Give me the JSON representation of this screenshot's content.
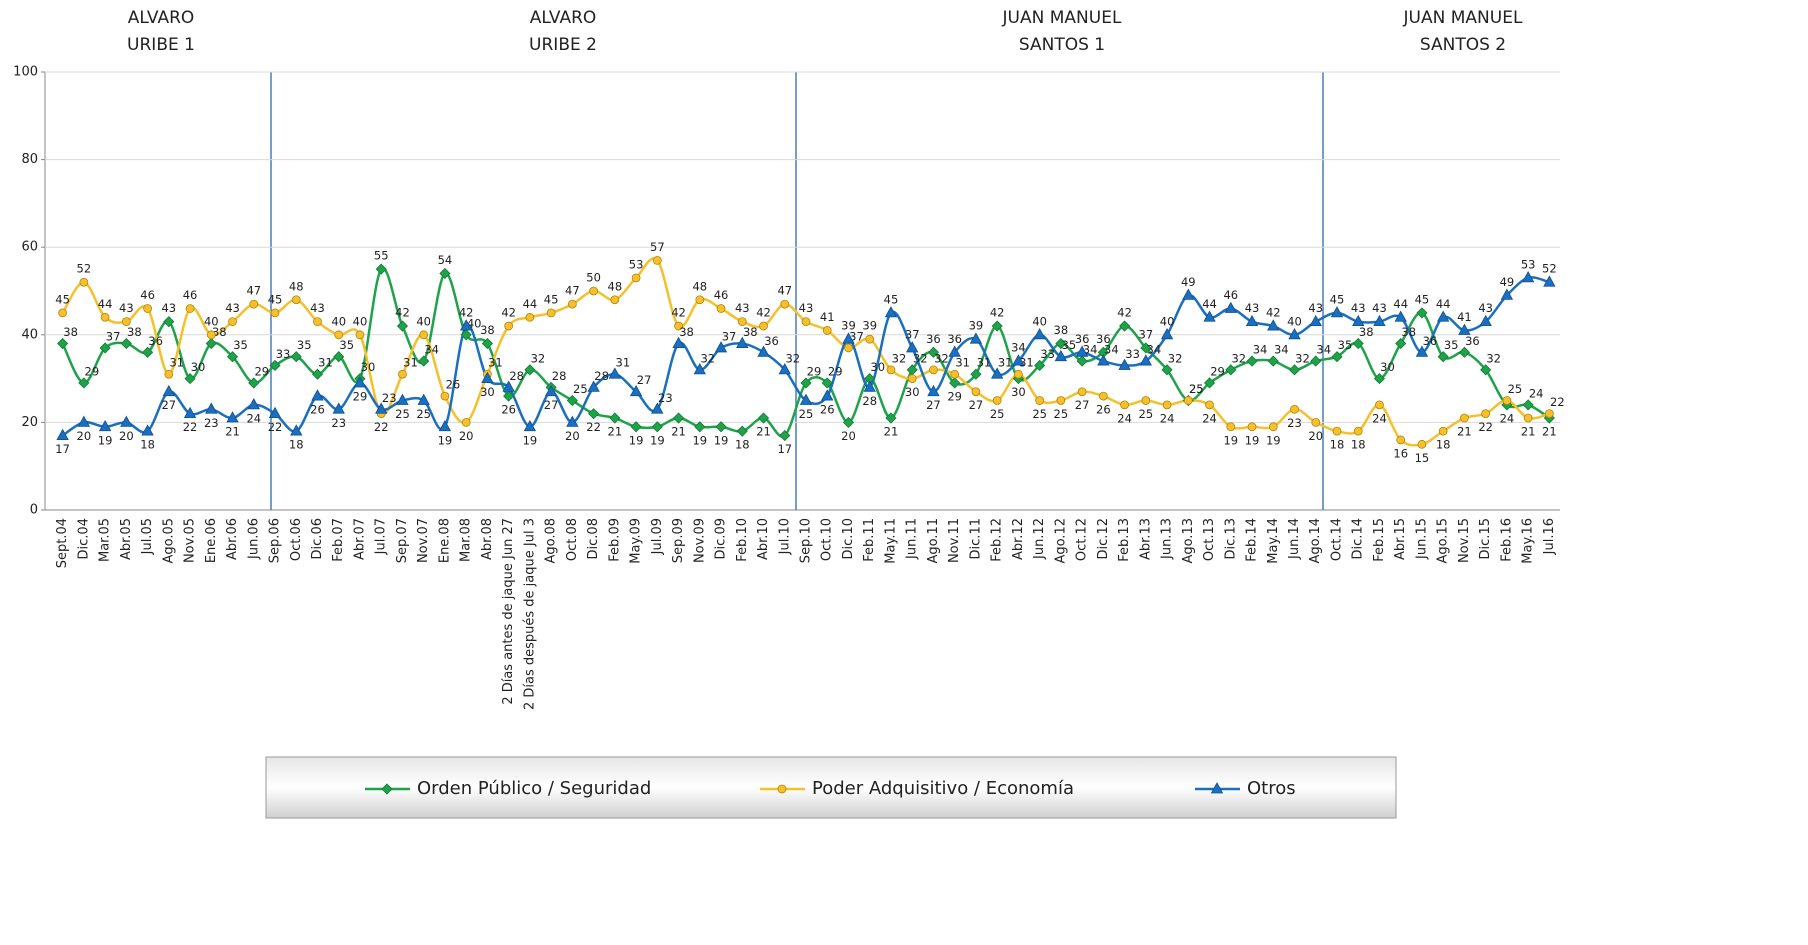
{
  "chart_data": {
    "type": "line",
    "periods": [
      [
        "ALVARO",
        "URIBE 1"
      ],
      [
        "ALVARO",
        "URIBE 2"
      ],
      [
        "JUAN MANUEL",
        "SANTOS 1"
      ],
      [
        "JUAN MANUEL",
        "SANTOS 2"
      ]
    ],
    "categories": [
      "Sept.04",
      "Dic.04",
      "Mar.05",
      "Abr.05",
      "Jul.05",
      "Ago.05",
      "Nov.05",
      "Ene.06",
      "Abr.06",
      "Jun.06",
      "Sep.06",
      "Oct.06",
      "Dic.06",
      "Feb.07",
      "Abr.07",
      "Jul.07",
      "Sep.07",
      "Nov.07",
      "Ene.08",
      "Mar.08",
      "Abr.08",
      "2 Días antes de jaque Jun 27",
      "2 Días después de jaque Jul 3",
      "Ago.08",
      "Oct.08",
      "Dic.08",
      "Feb.09",
      "May.09",
      "Jul.09",
      "Sep.09",
      "Nov.09",
      "Dic.09",
      "Feb.10",
      "Abr.10",
      "Jul.10",
      "Sep.10",
      "Oct.10",
      "Dic.10",
      "Feb.11",
      "May.11",
      "Jun.11",
      "Ago.11",
      "Nov.11",
      "Dic.11",
      "Feb.12",
      "Abr.12",
      "Jun.12",
      "Ago.12",
      "Oct.12",
      "Dic.12",
      "Feb.13",
      "Abr.13",
      "Jun.13",
      "Ago.13",
      "Oct.13",
      "Dic.13",
      "Feb.14",
      "May.14",
      "Jun.14",
      "Ago.14",
      "Oct.14",
      "Dic.14",
      "Feb.15",
      "Abr.15",
      "Jun.15",
      "Ago.15",
      "Nov.15",
      "Dic.15",
      "Feb.16",
      "May.16",
      "Jul.16"
    ],
    "series": [
      {
        "name": "Orden Público / Seguridad",
        "color": "#1fa34a",
        "marker": "diamond",
        "values": [
          38,
          29,
          37,
          38,
          36,
          43,
          30,
          38,
          35,
          29,
          33,
          35,
          31,
          35,
          30,
          55,
          42,
          34,
          54,
          40,
          38,
          26,
          32,
          28,
          25,
          22,
          21,
          19,
          19,
          21,
          19,
          19,
          18,
          21,
          17,
          29,
          29,
          20,
          30,
          21,
          32,
          36,
          29,
          31,
          42,
          30,
          33,
          38,
          34,
          36,
          42,
          37,
          32,
          25,
          29,
          32,
          34,
          34,
          32,
          34,
          35,
          38,
          30,
          38,
          45,
          35,
          36,
          32,
          24,
          24,
          21
        ]
      },
      {
        "name": "Poder Adquisitivo / Economía",
        "color": "#f5c02a",
        "marker": "circle",
        "values": [
          45,
          52,
          44,
          43,
          46,
          31,
          46,
          40,
          43,
          47,
          45,
          48,
          43,
          40,
          40,
          22,
          31,
          40,
          26,
          20,
          31,
          42,
          44,
          45,
          47,
          50,
          48,
          53,
          57,
          42,
          48,
          46,
          43,
          42,
          47,
          43,
          41,
          37,
          39,
          32,
          30,
          32,
          31,
          27,
          25,
          31,
          25,
          25,
          27,
          26,
          24,
          25,
          24,
          25,
          24,
          19,
          19,
          19,
          23,
          20,
          18,
          18,
          24,
          16,
          15,
          18,
          21,
          22,
          25,
          21,
          22
        ]
      },
      {
        "name": "Otros",
        "color": "#1a6fc0",
        "marker": "triangle",
        "values": [
          17,
          20,
          19,
          20,
          18,
          27,
          22,
          23,
          21,
          24,
          22,
          18,
          26,
          23,
          29,
          23,
          25,
          25,
          19,
          42,
          30,
          28,
          19,
          27,
          20,
          28,
          31,
          27,
          23,
          38,
          32,
          37,
          38,
          36,
          32,
          25,
          26,
          39,
          28,
          45,
          37,
          27,
          36,
          39,
          31,
          34,
          40,
          35,
          36,
          34,
          33,
          34,
          40,
          49,
          44,
          46,
          43,
          42,
          40,
          43,
          45,
          43,
          43,
          44,
          36,
          44,
          41,
          43,
          49,
          53,
          52
        ]
      }
    ],
    "ylim": [
      0,
      100
    ],
    "yticks": [
      0,
      20,
      40,
      60,
      80,
      100
    ],
    "grid": true,
    "legend": "bottom"
  }
}
